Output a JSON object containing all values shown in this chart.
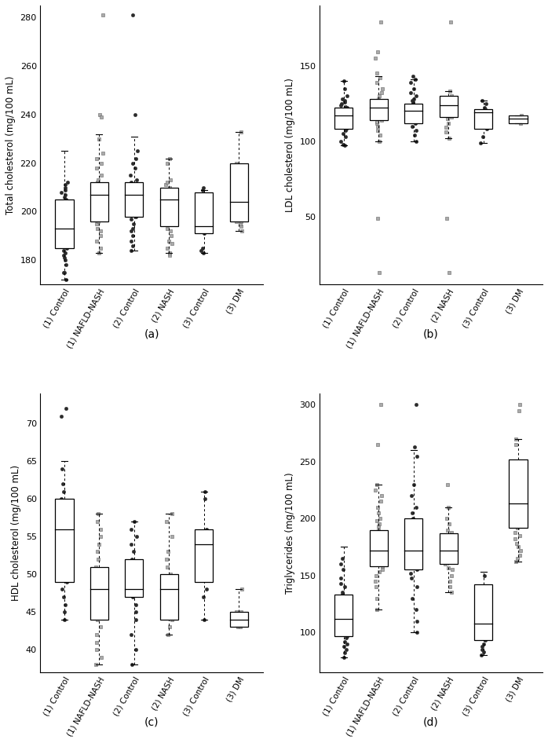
{
  "categories": [
    "(1) Control",
    "(1) NAFLD-NASH",
    "(2) Control",
    "(2) NASH",
    "(3) Control",
    "(3) DM"
  ],
  "subplot_labels": [
    "(a)",
    "(b)",
    "(c)",
    "(d)"
  ],
  "ylabels": [
    "Total cholesterol (mg/100 mL)",
    "LDL cholesterol (mg/100 mL)",
    "HDL cholesterol (mg/100 mL)",
    "Triglycerides (mg/100 mL)"
  ],
  "total_chol": {
    "boxes": [
      {
        "q1": 185,
        "median": 193,
        "q3": 205,
        "whislo": 172,
        "whishi": 225
      },
      {
        "q1": 196,
        "median": 207,
        "q3": 212,
        "whislo": 183,
        "whishi": 232
      },
      {
        "q1": 198,
        "median": 207,
        "q3": 212,
        "whislo": 184,
        "whishi": 231
      },
      {
        "q1": 194,
        "median": 205,
        "q3": 210,
        "whislo": 183,
        "whishi": 222
      },
      {
        "q1": 191,
        "median": 194,
        "q3": 208,
        "whislo": 183,
        "whishi": 209
      },
      {
        "q1": 196,
        "median": 204,
        "q3": 220,
        "whislo": 192,
        "whishi": 233
      }
    ],
    "circle_dots": [
      [
        175,
        178,
        180,
        181,
        182,
        183,
        184,
        185,
        186,
        187,
        188,
        188,
        189,
        190,
        191,
        192,
        193,
        193,
        194,
        195,
        196,
        197,
        197,
        198,
        199,
        200,
        200,
        201,
        202,
        203,
        204,
        205,
        206,
        207,
        208,
        209,
        210,
        211,
        212,
        172,
        175
      ],
      [],
      [
        184,
        186,
        188,
        190,
        192,
        193,
        195,
        197,
        198,
        199,
        200,
        201,
        202,
        203,
        204,
        205,
        206,
        207,
        208,
        209,
        210,
        211,
        212,
        213,
        215,
        218,
        220,
        222,
        225,
        281,
        240
      ],
      [],
      [
        183,
        184,
        185,
        191,
        193,
        196,
        198,
        200,
        205,
        207,
        209,
        210
      ],
      []
    ],
    "square_dots": [
      [],
      [
        183,
        185,
        188,
        190,
        192,
        193,
        195,
        196,
        197,
        198,
        199,
        200,
        201,
        202,
        203,
        204,
        205,
        206,
        207,
        208,
        209,
        210,
        211,
        212,
        213,
        215,
        218,
        220,
        222,
        224,
        230,
        281,
        240,
        239
      ],
      [],
      [
        182,
        183,
        185,
        187,
        188,
        190,
        192,
        193,
        195,
        196,
        198,
        200,
        202,
        204,
        205,
        206,
        207,
        208,
        209,
        210,
        211,
        212,
        213,
        220,
        222
      ],
      [],
      [
        192,
        194,
        195,
        196,
        198,
        200,
        202,
        204,
        205,
        208,
        215,
        220,
        233,
        196
      ]
    ],
    "ylim": [
      170,
      285
    ],
    "yticks": [
      180,
      200,
      220,
      240,
      260,
      280
    ]
  },
  "ldl_chol": {
    "boxes": [
      {
        "q1": 108,
        "median": 117,
        "q3": 122,
        "whislo": 97,
        "whishi": 140
      },
      {
        "q1": 114,
        "median": 122,
        "q3": 128,
        "whislo": 100,
        "whishi": 143
      },
      {
        "q1": 112,
        "median": 120,
        "q3": 125,
        "whislo": 100,
        "whishi": 141
      },
      {
        "q1": 116,
        "median": 124,
        "q3": 130,
        "whislo": 102,
        "whishi": 133
      },
      {
        "q1": 108,
        "median": 119,
        "q3": 121,
        "whislo": 99,
        "whishi": 127
      },
      {
        "q1": 112,
        "median": 115,
        "q3": 117,
        "whislo": 112,
        "whishi": 117
      }
    ],
    "circle_dots": [
      [
        97,
        98,
        100,
        103,
        105,
        107,
        108,
        109,
        110,
        111,
        112,
        113,
        114,
        115,
        116,
        117,
        118,
        119,
        120,
        121,
        122,
        123,
        124,
        125,
        126,
        127,
        128,
        130,
        135,
        140
      ],
      [],
      [
        100,
        104,
        107,
        110,
        112,
        113,
        114,
        115,
        116,
        117,
        118,
        119,
        120,
        121,
        122,
        123,
        124,
        125,
        126,
        127,
        128,
        130,
        132,
        135,
        139,
        141,
        143
      ],
      [],
      [
        99,
        103,
        108,
        110,
        113,
        115,
        117,
        119,
        120,
        121,
        122,
        125,
        127
      ],
      []
    ],
    "square_dots": [
      [],
      [
        100,
        104,
        107,
        110,
        112,
        113,
        114,
        115,
        116,
        117,
        118,
        119,
        120,
        121,
        122,
        123,
        124,
        125,
        126,
        127,
        128,
        130,
        132,
        135,
        139,
        142,
        145,
        155,
        179,
        159,
        49,
        13
      ],
      [],
      [
        102,
        106,
        109,
        112,
        115,
        116,
        117,
        118,
        119,
        120,
        121,
        122,
        123,
        124,
        125,
        126,
        128,
        130,
        133,
        179,
        49,
        13
      ],
      [],
      [
        112,
        113,
        114,
        115,
        116,
        117
      ]
    ],
    "ylim": [
      5,
      190
    ],
    "yticks": [
      50,
      100,
      150
    ]
  },
  "hdl_chol": {
    "boxes": [
      {
        "q1": 49,
        "median": 56,
        "q3": 60,
        "whislo": 44,
        "whishi": 65
      },
      {
        "q1": 44,
        "median": 48,
        "q3": 51,
        "whislo": 38,
        "whishi": 58
      },
      {
        "q1": 47,
        "median": 48,
        "q3": 52,
        "whislo": 38,
        "whishi": 57
      },
      {
        "q1": 44,
        "median": 48,
        "q3": 50,
        "whislo": 42,
        "whishi": 58
      },
      {
        "q1": 49,
        "median": 54,
        "q3": 56,
        "whislo": 44,
        "whishi": 61
      },
      {
        "q1": 43,
        "median": 44,
        "q3": 45,
        "whislo": 43,
        "whishi": 48
      }
    ],
    "circle_dots": [
      [
        44,
        45,
        46,
        47,
        48,
        49,
        50,
        51,
        52,
        53,
        54,
        55,
        56,
        57,
        58,
        59,
        60,
        61,
        62,
        64,
        71,
        72
      ],
      [],
      [
        38,
        40,
        42,
        44,
        45,
        46,
        47,
        48,
        49,
        50,
        51,
        52,
        53,
        54,
        55,
        56,
        57
      ],
      [],
      [
        44,
        47,
        48,
        50,
        52,
        54,
        56,
        60,
        61
      ],
      []
    ],
    "square_dots": [
      [],
      [
        38,
        39,
        40,
        41,
        42,
        43,
        44,
        45,
        46,
        47,
        48,
        49,
        50,
        51,
        52,
        53,
        54,
        55,
        56,
        57,
        58
      ],
      [],
      [
        42,
        43,
        44,
        45,
        46,
        47,
        48,
        49,
        50,
        51,
        52,
        53,
        55,
        57,
        58
      ],
      [],
      [
        43,
        43,
        44,
        44,
        45,
        45,
        48
      ]
    ],
    "ylim": [
      37,
      74
    ],
    "yticks": [
      40,
      45,
      50,
      55,
      60,
      65,
      70
    ]
  },
  "triglycerides": {
    "boxes": [
      {
        "q1": 97,
        "median": 112,
        "q3": 133,
        "whislo": 78,
        "whishi": 175
      },
      {
        "q1": 158,
        "median": 172,
        "q3": 190,
        "whislo": 120,
        "whishi": 230
      },
      {
        "q1": 155,
        "median": 172,
        "q3": 200,
        "whislo": 100,
        "whishi": 260
      },
      {
        "q1": 160,
        "median": 172,
        "q3": 187,
        "whislo": 135,
        "whishi": 210
      },
      {
        "q1": 93,
        "median": 108,
        "q3": 142,
        "whislo": 80,
        "whishi": 153
      },
      {
        "q1": 192,
        "median": 213,
        "q3": 252,
        "whislo": 162,
        "whishi": 270
      }
    ],
    "circle_dots": [
      [
        78,
        82,
        85,
        88,
        90,
        92,
        95,
        97,
        98,
        100,
        102,
        103,
        105,
        107,
        108,
        110,
        112,
        113,
        115,
        117,
        118,
        120,
        122,
        124,
        125,
        127,
        128,
        130,
        133,
        135,
        140,
        143,
        148,
        155,
        160,
        165
      ],
      [],
      [
        100,
        110,
        120,
        130,
        140,
        148,
        152,
        155,
        158,
        160,
        163,
        165,
        168,
        170,
        173,
        178,
        183,
        190,
        195,
        200,
        205,
        210,
        220,
        230,
        255,
        263,
        300
      ],
      [],
      [
        80,
        83,
        85,
        88,
        90,
        93,
        97,
        100,
        103,
        106,
        108,
        110,
        115,
        120,
        125,
        130,
        140,
        150
      ],
      []
    ],
    "square_dots": [
      [],
      [
        120,
        130,
        140,
        145,
        150,
        153,
        155,
        158,
        160,
        163,
        165,
        168,
        170,
        173,
        175,
        178,
        180,
        183,
        185,
        188,
        190,
        193,
        195,
        198,
        200,
        205,
        210,
        215,
        220,
        225,
        230,
        265,
        300
      ],
      [],
      [
        135,
        140,
        145,
        150,
        155,
        157,
        160,
        162,
        163,
        165,
        168,
        170,
        172,
        175,
        178,
        180,
        182,
        185,
        188,
        190,
        195,
        200,
        210,
        230
      ],
      [],
      [
        162,
        165,
        168,
        172,
        175,
        178,
        182,
        185,
        188,
        192,
        195,
        200,
        205,
        210,
        215,
        220,
        225,
        240,
        265,
        270,
        295,
        300
      ]
    ],
    "ylim": [
      65,
      310
    ],
    "yticks": [
      100,
      150,
      200,
      250,
      300
    ]
  },
  "circle_color": "#2b2b2b",
  "square_color": "#aaaaaa",
  "square_edge_color": "#666666"
}
